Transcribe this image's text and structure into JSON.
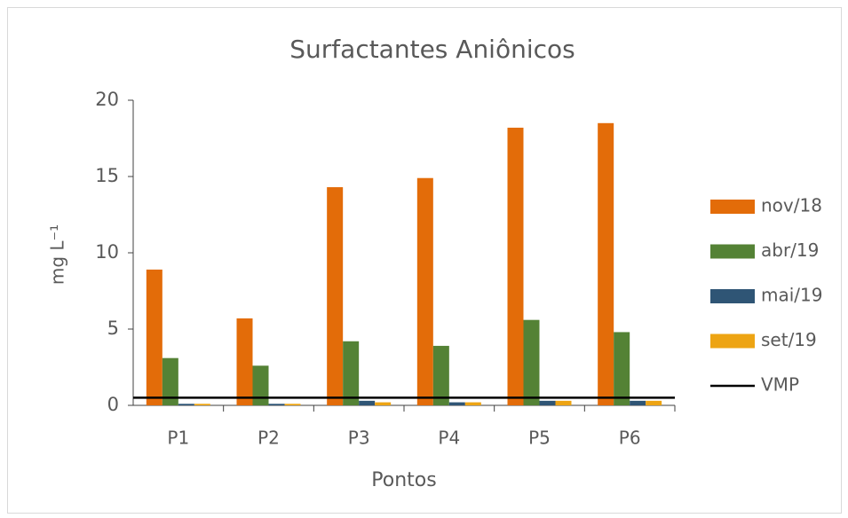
{
  "chart_data": {
    "type": "bar",
    "title": "Surfactantes Aniônicos",
    "x_label": "Pontos",
    "y_label": "mg L⁻¹",
    "categories": [
      "P1",
      "P2",
      "P3",
      "P4",
      "P5",
      "P6"
    ],
    "series": [
      {
        "name": "nov/18",
        "color": "#e36c09",
        "values": [
          8.9,
          5.7,
          14.3,
          14.9,
          18.2,
          18.5
        ]
      },
      {
        "name": "abr/19",
        "color": "#548235",
        "values": [
          3.1,
          2.6,
          4.2,
          3.9,
          5.6,
          4.8
        ]
      },
      {
        "name": "mai/19",
        "color": "#2f5575",
        "values": [
          0.1,
          0.1,
          0.3,
          0.2,
          0.3,
          0.3
        ]
      },
      {
        "name": "set/19",
        "color": "#eda413",
        "values": [
          0.1,
          0.1,
          0.2,
          0.2,
          0.3,
          0.3
        ]
      }
    ],
    "reference_line": {
      "name": "VMP",
      "value": 0.5,
      "color": "#000000"
    },
    "ylim": [
      0,
      20
    ],
    "yticks": [
      0,
      5,
      10,
      15,
      20
    ],
    "grid": false,
    "legend": "right"
  }
}
